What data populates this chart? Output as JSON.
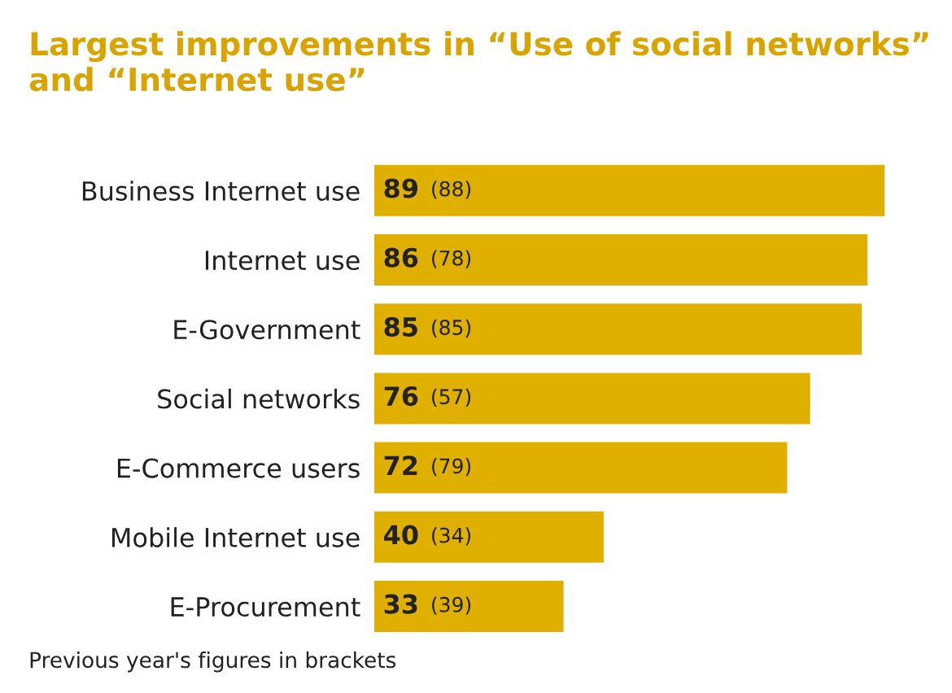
{
  "chart_data": {
    "type": "bar",
    "orientation": "horizontal",
    "title": "Largest improvements in “Use of social networks”\nand “Internet use”",
    "categories": [
      "Business Internet use",
      "Internet use",
      "E-Government",
      "Social networks",
      "E-Commerce users",
      "Mobile Internet use",
      "E-Procurement"
    ],
    "values": [
      89,
      86,
      85,
      76,
      72,
      40,
      33
    ],
    "value_labels": [
      "89 (88)",
      "86 (78)",
      "85 (85)",
      "76 (57)",
      "72 (79)",
      "40 (34)",
      "33 (39)"
    ],
    "color": "#e0b000",
    "annotations": [
      "Previous year's figures in brackets"
    ]
  }
}
